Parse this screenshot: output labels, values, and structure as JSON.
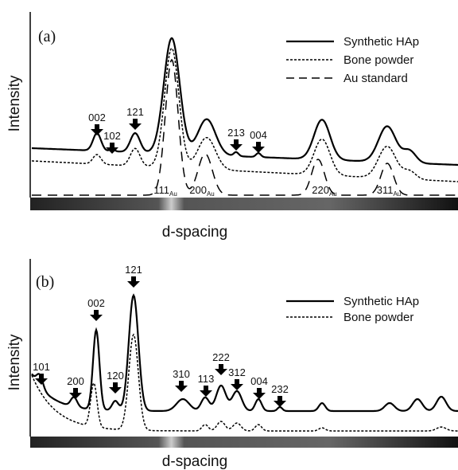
{
  "panels": [
    {
      "label": "(a)",
      "y_label": "Intensity",
      "x_label": "d-spacing",
      "legend": [
        "Synthetic HAp",
        "Bone powder",
        "Au standard"
      ],
      "peaks": [
        "002",
        "102",
        "121",
        "213",
        "004"
      ],
      "au_peaks": [
        {
          "text": "111",
          "sub": "Au"
        },
        {
          "text": "200",
          "sub": "Au"
        },
        {
          "text": "220",
          "sub": "Au"
        },
        {
          "text": "311",
          "sub": "Au"
        }
      ]
    },
    {
      "label": "(b)",
      "y_label": "Intensity",
      "x_label": "d-spacing",
      "legend": [
        "Synthetic HAp",
        "Bone powder"
      ],
      "peaks": [
        "101",
        "200",
        "002",
        "120",
        "121",
        "310",
        "113",
        "222",
        "312",
        "004",
        "232"
      ]
    }
  ]
}
